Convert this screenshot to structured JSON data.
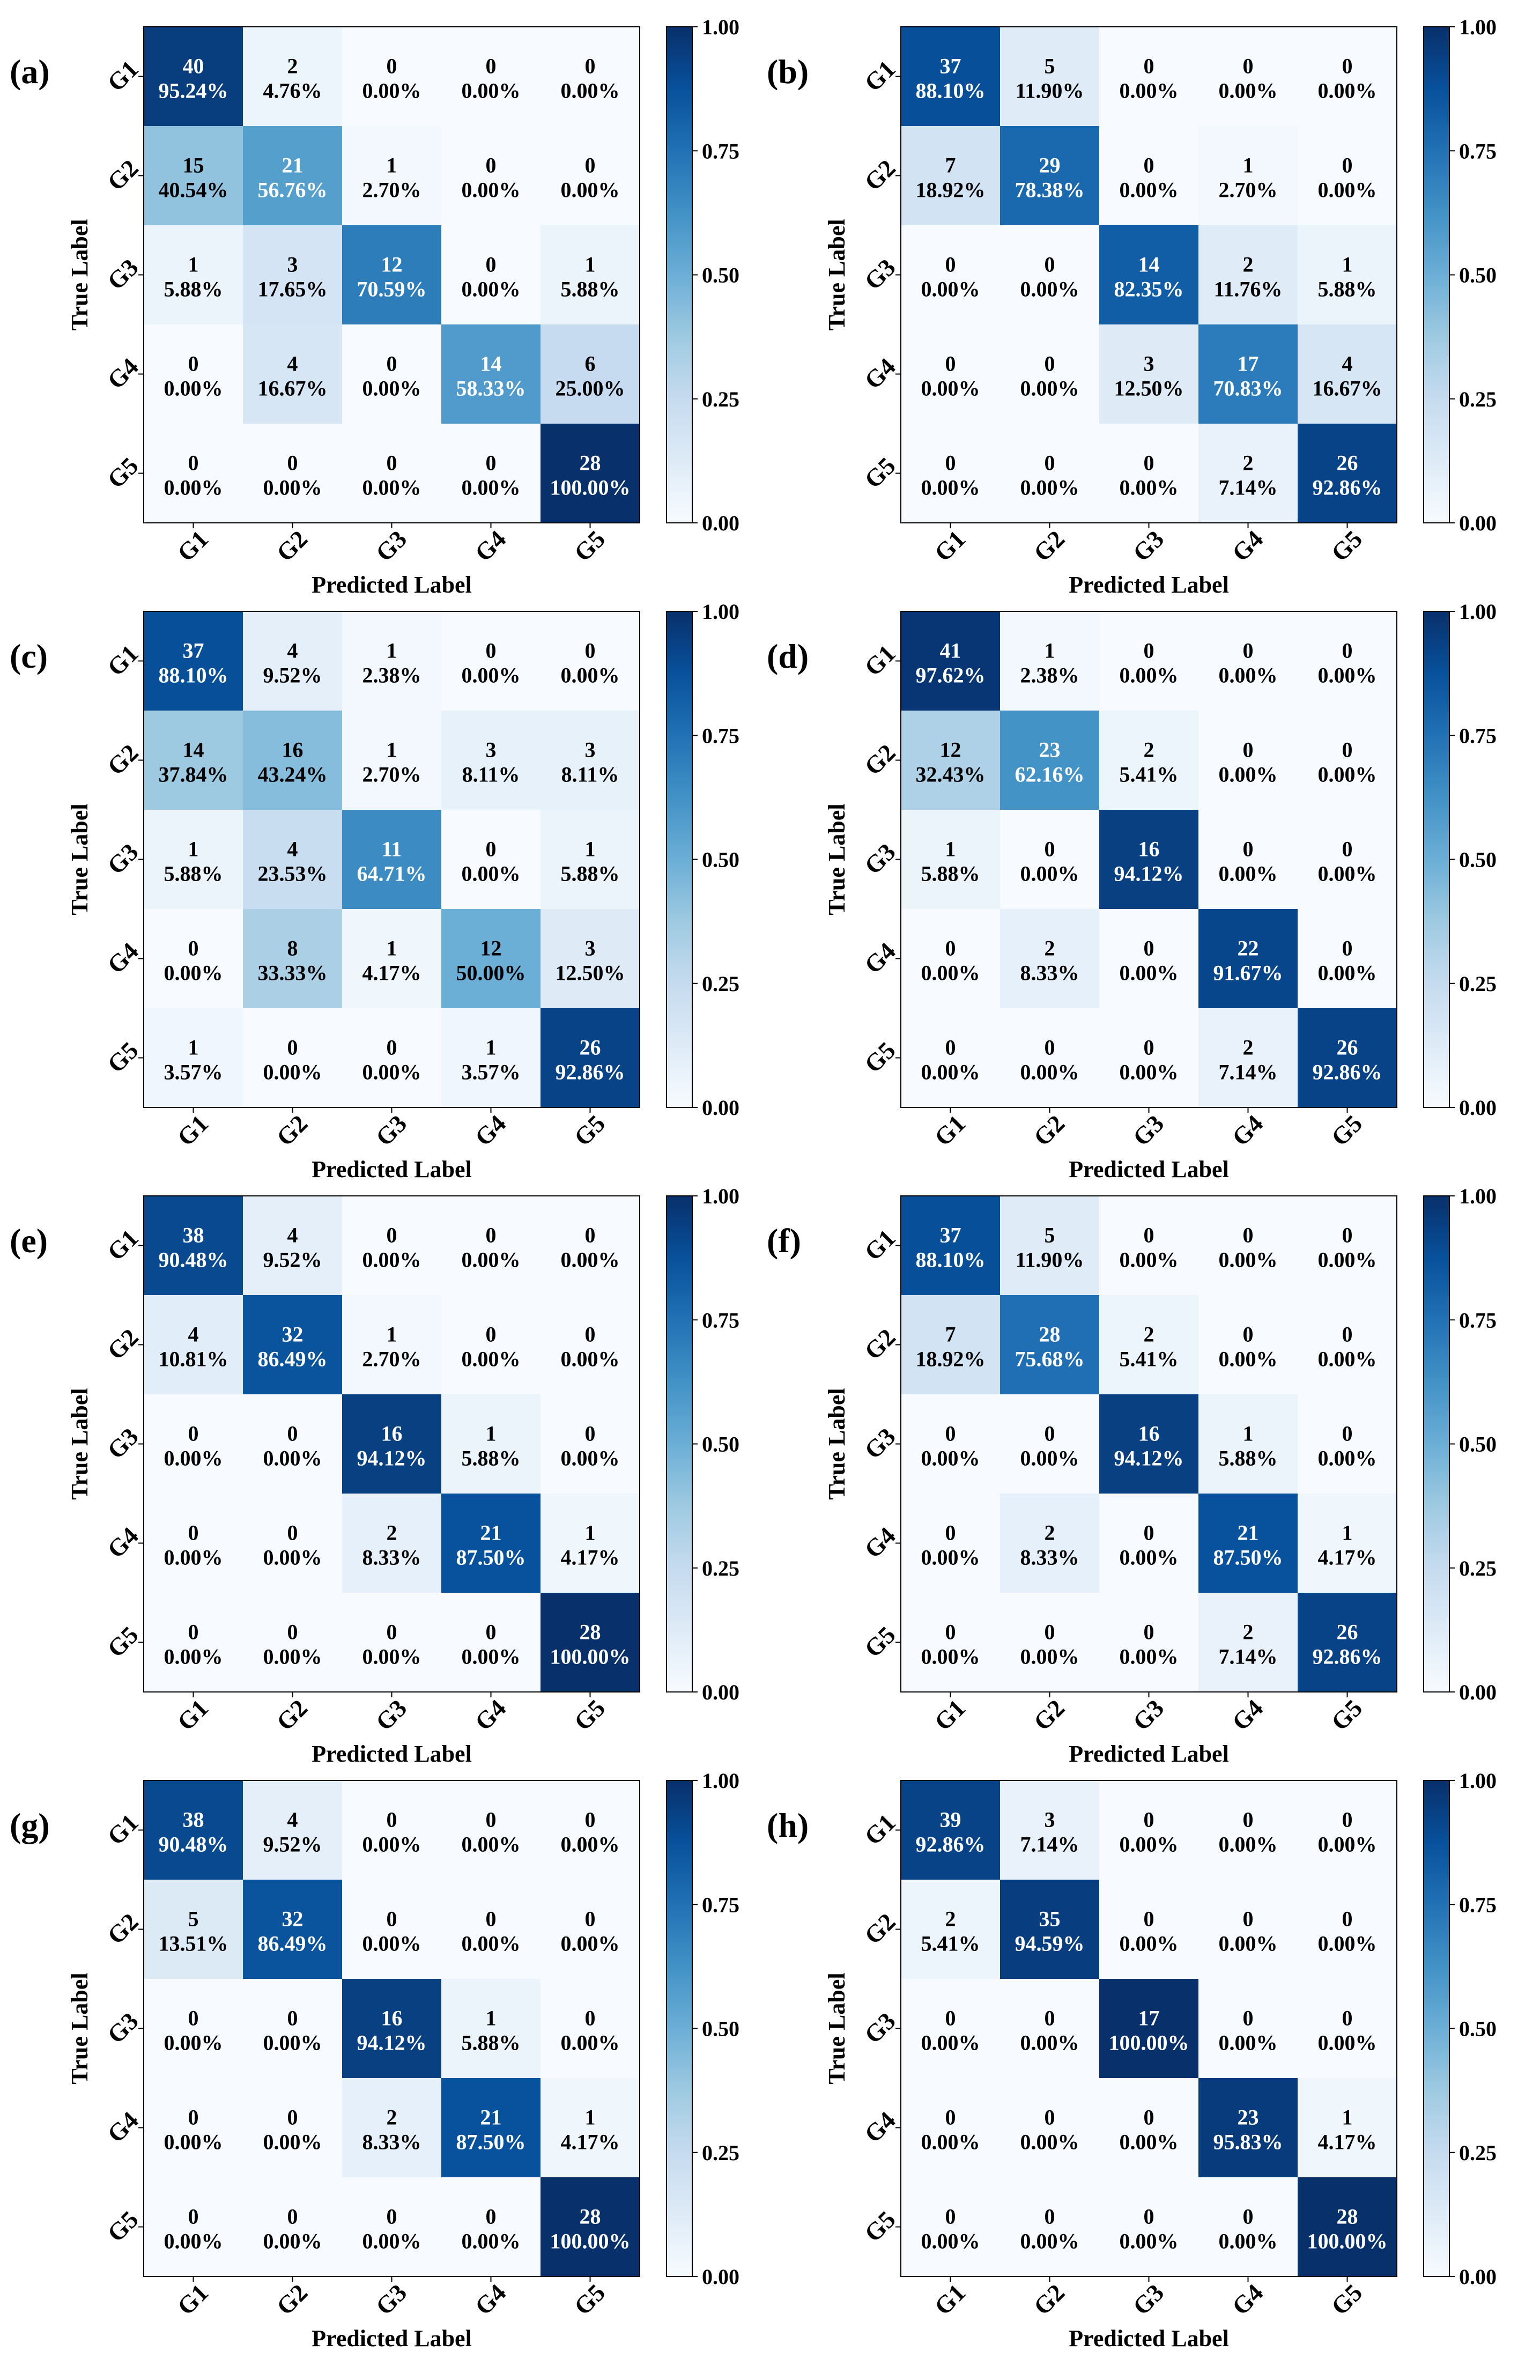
{
  "chart_data": [
    {
      "panel": "(a)",
      "type": "heatmap",
      "xlabel": "Predicted Label",
      "ylabel": "True Label",
      "x_categories": [
        "G1",
        "G2",
        "G3",
        "G4",
        "G5"
      ],
      "y_categories": [
        "G1",
        "G2",
        "G3",
        "G4",
        "G5"
      ],
      "counts": [
        [
          40,
          2,
          0,
          0,
          0
        ],
        [
          15,
          21,
          1,
          0,
          0
        ],
        [
          1,
          3,
          12,
          0,
          1
        ],
        [
          0,
          4,
          0,
          14,
          6
        ],
        [
          0,
          0,
          0,
          0,
          28
        ]
      ],
      "percents": [
        [
          "95.24%",
          "4.76%",
          "0.00%",
          "0.00%",
          "0.00%"
        ],
        [
          "40.54%",
          "56.76%",
          "2.70%",
          "0.00%",
          "0.00%"
        ],
        [
          "5.88%",
          "17.65%",
          "70.59%",
          "0.00%",
          "5.88%"
        ],
        [
          "0.00%",
          "16.67%",
          "0.00%",
          "58.33%",
          "25.00%"
        ],
        [
          "0.00%",
          "0.00%",
          "0.00%",
          "0.00%",
          "100.00%"
        ]
      ],
      "colorbar_ticks": [
        "0.00",
        "0.25",
        "0.50",
        "0.75",
        "1.00"
      ],
      "colorbar_range": [
        0,
        1
      ]
    },
    {
      "panel": "(b)",
      "type": "heatmap",
      "xlabel": "Predicted Label",
      "ylabel": "True Label",
      "x_categories": [
        "G1",
        "G2",
        "G3",
        "G4",
        "G5"
      ],
      "y_categories": [
        "G1",
        "G2",
        "G3",
        "G4",
        "G5"
      ],
      "counts": [
        [
          37,
          5,
          0,
          0,
          0
        ],
        [
          7,
          29,
          0,
          1,
          0
        ],
        [
          0,
          0,
          14,
          2,
          1
        ],
        [
          0,
          0,
          3,
          17,
          4
        ],
        [
          0,
          0,
          0,
          2,
          26
        ]
      ],
      "percents": [
        [
          "88.10%",
          "11.90%",
          "0.00%",
          "0.00%",
          "0.00%"
        ],
        [
          "18.92%",
          "78.38%",
          "0.00%",
          "2.70%",
          "0.00%"
        ],
        [
          "0.00%",
          "0.00%",
          "82.35%",
          "11.76%",
          "5.88%"
        ],
        [
          "0.00%",
          "0.00%",
          "12.50%",
          "70.83%",
          "16.67%"
        ],
        [
          "0.00%",
          "0.00%",
          "0.00%",
          "7.14%",
          "92.86%"
        ]
      ],
      "colorbar_ticks": [
        "0.00",
        "0.25",
        "0.50",
        "0.75",
        "1.00"
      ],
      "colorbar_range": [
        0,
        1
      ]
    },
    {
      "panel": "(c)",
      "type": "heatmap",
      "xlabel": "Predicted Label",
      "ylabel": "True Label",
      "x_categories": [
        "G1",
        "G2",
        "G3",
        "G4",
        "G5"
      ],
      "y_categories": [
        "G1",
        "G2",
        "G3",
        "G4",
        "G5"
      ],
      "counts": [
        [
          37,
          4,
          1,
          0,
          0
        ],
        [
          14,
          16,
          1,
          3,
          3
        ],
        [
          1,
          4,
          11,
          0,
          1
        ],
        [
          0,
          8,
          1,
          12,
          3
        ],
        [
          1,
          0,
          0,
          1,
          26
        ]
      ],
      "percents": [
        [
          "88.10%",
          "9.52%",
          "2.38%",
          "0.00%",
          "0.00%"
        ],
        [
          "37.84%",
          "43.24%",
          "2.70%",
          "8.11%",
          "8.11%"
        ],
        [
          "5.88%",
          "23.53%",
          "64.71%",
          "0.00%",
          "5.88%"
        ],
        [
          "0.00%",
          "33.33%",
          "4.17%",
          "50.00%",
          "12.50%"
        ],
        [
          "3.57%",
          "0.00%",
          "0.00%",
          "3.57%",
          "92.86%"
        ]
      ],
      "colorbar_ticks": [
        "0.00",
        "0.25",
        "0.50",
        "0.75",
        "1.00"
      ],
      "colorbar_range": [
        0,
        1
      ]
    },
    {
      "panel": "(d)",
      "type": "heatmap",
      "xlabel": "Predicted Label",
      "ylabel": "True Label",
      "x_categories": [
        "G1",
        "G2",
        "G3",
        "G4",
        "G5"
      ],
      "y_categories": [
        "G1",
        "G2",
        "G3",
        "G4",
        "G5"
      ],
      "counts": [
        [
          41,
          1,
          0,
          0,
          0
        ],
        [
          12,
          23,
          2,
          0,
          0
        ],
        [
          1,
          0,
          16,
          0,
          0
        ],
        [
          0,
          2,
          0,
          22,
          0
        ],
        [
          0,
          0,
          0,
          2,
          26
        ]
      ],
      "percents": [
        [
          "97.62%",
          "2.38%",
          "0.00%",
          "0.00%",
          "0.00%"
        ],
        [
          "32.43%",
          "62.16%",
          "5.41%",
          "0.00%",
          "0.00%"
        ],
        [
          "5.88%",
          "0.00%",
          "94.12%",
          "0.00%",
          "0.00%"
        ],
        [
          "0.00%",
          "8.33%",
          "0.00%",
          "91.67%",
          "0.00%"
        ],
        [
          "0.00%",
          "0.00%",
          "0.00%",
          "7.14%",
          "92.86%"
        ]
      ],
      "colorbar_ticks": [
        "0.00",
        "0.25",
        "0.50",
        "0.75",
        "1.00"
      ],
      "colorbar_range": [
        0,
        1
      ]
    },
    {
      "panel": "(e)",
      "type": "heatmap",
      "xlabel": "Predicted Label",
      "ylabel": "True Label",
      "x_categories": [
        "G1",
        "G2",
        "G3",
        "G4",
        "G5"
      ],
      "y_categories": [
        "G1",
        "G2",
        "G3",
        "G4",
        "G5"
      ],
      "counts": [
        [
          38,
          4,
          0,
          0,
          0
        ],
        [
          4,
          32,
          1,
          0,
          0
        ],
        [
          0,
          0,
          16,
          1,
          0
        ],
        [
          0,
          0,
          2,
          21,
          1
        ],
        [
          0,
          0,
          0,
          0,
          28
        ]
      ],
      "percents": [
        [
          "90.48%",
          "9.52%",
          "0.00%",
          "0.00%",
          "0.00%"
        ],
        [
          "10.81%",
          "86.49%",
          "2.70%",
          "0.00%",
          "0.00%"
        ],
        [
          "0.00%",
          "0.00%",
          "94.12%",
          "5.88%",
          "0.00%"
        ],
        [
          "0.00%",
          "0.00%",
          "8.33%",
          "87.50%",
          "4.17%"
        ],
        [
          "0.00%",
          "0.00%",
          "0.00%",
          "0.00%",
          "100.00%"
        ]
      ],
      "colorbar_ticks": [
        "0.00",
        "0.25",
        "0.50",
        "0.75",
        "1.00"
      ],
      "colorbar_range": [
        0,
        1
      ]
    },
    {
      "panel": "(f)",
      "type": "heatmap",
      "xlabel": "Predicted Label",
      "ylabel": "True Label",
      "x_categories": [
        "G1",
        "G2",
        "G3",
        "G4",
        "G5"
      ],
      "y_categories": [
        "G1",
        "G2",
        "G3",
        "G4",
        "G5"
      ],
      "counts": [
        [
          37,
          5,
          0,
          0,
          0
        ],
        [
          7,
          28,
          2,
          0,
          0
        ],
        [
          0,
          0,
          16,
          1,
          0
        ],
        [
          0,
          2,
          0,
          21,
          1
        ],
        [
          0,
          0,
          0,
          2,
          26
        ]
      ],
      "percents": [
        [
          "88.10%",
          "11.90%",
          "0.00%",
          "0.00%",
          "0.00%"
        ],
        [
          "18.92%",
          "75.68%",
          "5.41%",
          "0.00%",
          "0.00%"
        ],
        [
          "0.00%",
          "0.00%",
          "94.12%",
          "5.88%",
          "0.00%"
        ],
        [
          "0.00%",
          "8.33%",
          "0.00%",
          "87.50%",
          "4.17%"
        ],
        [
          "0.00%",
          "0.00%",
          "0.00%",
          "7.14%",
          "92.86%"
        ]
      ],
      "colorbar_ticks": [
        "0.00",
        "0.25",
        "0.50",
        "0.75",
        "1.00"
      ],
      "colorbar_range": [
        0,
        1
      ]
    },
    {
      "panel": "(g)",
      "type": "heatmap",
      "xlabel": "Predicted Label",
      "ylabel": "True Label",
      "x_categories": [
        "G1",
        "G2",
        "G3",
        "G4",
        "G5"
      ],
      "y_categories": [
        "G1",
        "G2",
        "G3",
        "G4",
        "G5"
      ],
      "counts": [
        [
          38,
          4,
          0,
          0,
          0
        ],
        [
          5,
          32,
          0,
          0,
          0
        ],
        [
          0,
          0,
          16,
          1,
          0
        ],
        [
          0,
          0,
          2,
          21,
          1
        ],
        [
          0,
          0,
          0,
          0,
          28
        ]
      ],
      "percents": [
        [
          "90.48%",
          "9.52%",
          "0.00%",
          "0.00%",
          "0.00%"
        ],
        [
          "13.51%",
          "86.49%",
          "0.00%",
          "0.00%",
          "0.00%"
        ],
        [
          "0.00%",
          "0.00%",
          "94.12%",
          "5.88%",
          "0.00%"
        ],
        [
          "0.00%",
          "0.00%",
          "8.33%",
          "87.50%",
          "4.17%"
        ],
        [
          "0.00%",
          "0.00%",
          "0.00%",
          "0.00%",
          "100.00%"
        ]
      ],
      "colorbar_ticks": [
        "0.00",
        "0.25",
        "0.50",
        "0.75",
        "1.00"
      ],
      "colorbar_range": [
        0,
        1
      ]
    },
    {
      "panel": "(h)",
      "type": "heatmap",
      "xlabel": "Predicted Label",
      "ylabel": "True Label",
      "x_categories": [
        "G1",
        "G2",
        "G3",
        "G4",
        "G5"
      ],
      "y_categories": [
        "G1",
        "G2",
        "G3",
        "G4",
        "G5"
      ],
      "counts": [
        [
          39,
          3,
          0,
          0,
          0
        ],
        [
          2,
          35,
          0,
          0,
          0
        ],
        [
          0,
          0,
          17,
          0,
          0
        ],
        [
          0,
          0,
          0,
          23,
          1
        ],
        [
          0,
          0,
          0,
          0,
          28
        ]
      ],
      "percents": [
        [
          "92.86%",
          "7.14%",
          "0.00%",
          "0.00%",
          "0.00%"
        ],
        [
          "5.41%",
          "94.59%",
          "0.00%",
          "0.00%",
          "0.00%"
        ],
        [
          "0.00%",
          "0.00%",
          "100.00%",
          "0.00%",
          "0.00%"
        ],
        [
          "0.00%",
          "0.00%",
          "0.00%",
          "95.83%",
          "4.17%"
        ],
        [
          "0.00%",
          "0.00%",
          "0.00%",
          "0.00%",
          "100.00%"
        ]
      ],
      "colorbar_ticks": [
        "0.00",
        "0.25",
        "0.50",
        "0.75",
        "1.00"
      ],
      "colorbar_range": [
        0,
        1
      ]
    }
  ]
}
